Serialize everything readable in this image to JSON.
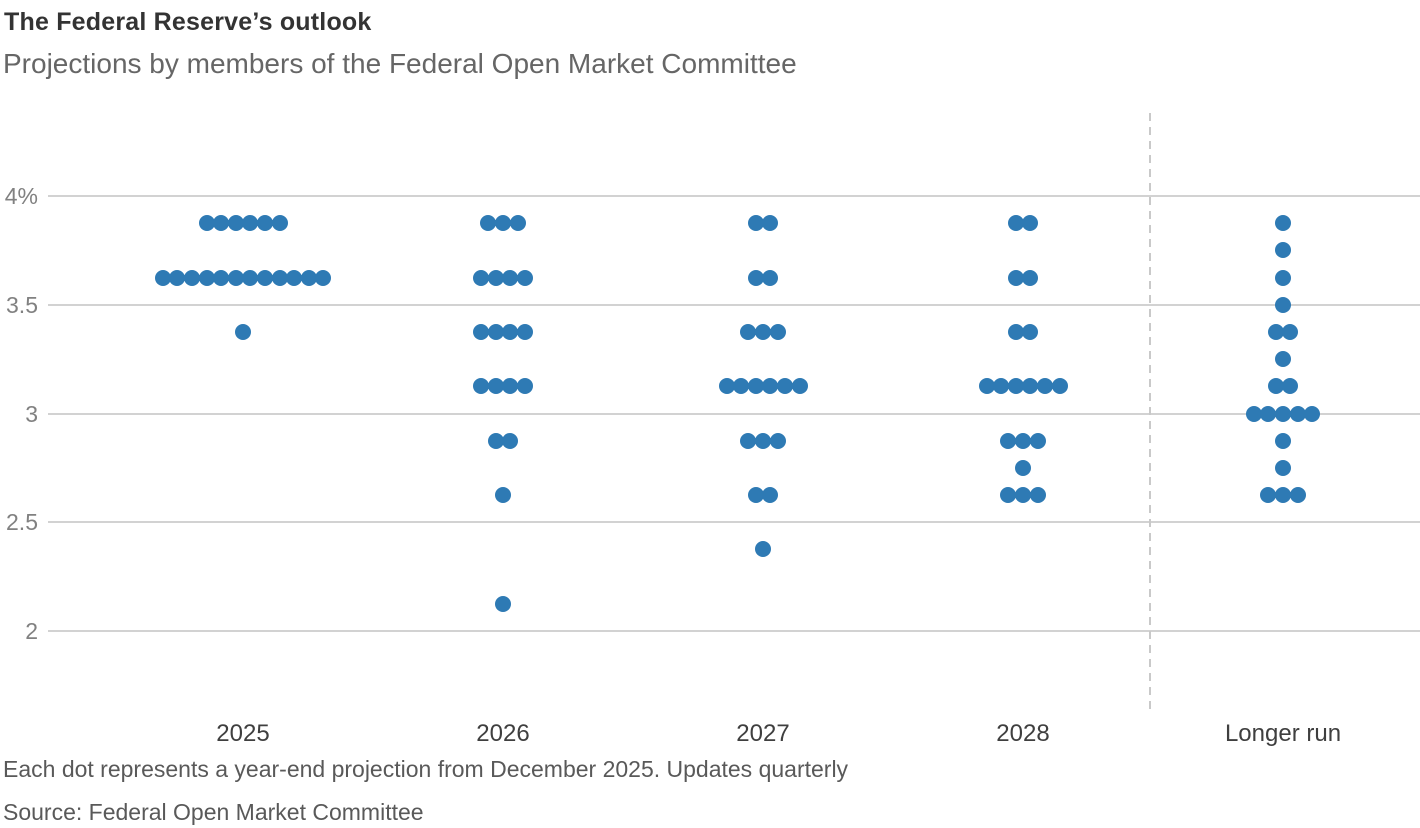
{
  "chart_data": {
    "type": "scatter",
    "subtype": "dot-plot",
    "title": "The Federal Reserve’s outlook",
    "subtitle": "Projections by members of the Federal Open Market Committee",
    "note": "Each dot represents a year-end projection from December 2025. Updates quarterly",
    "source": "Source: Federal Open Market Committee",
    "dot_color": "#2e7ab4",
    "gridline_color": "#d2d2d2",
    "separator_color": "#c9c9c9",
    "grid": "horizontal",
    "legend": "none",
    "ylim": [
      1.52,
      4.4
    ],
    "y_ticks": [
      {
        "label": "4%",
        "value": 4.0
      },
      {
        "label": "3.5",
        "value": 3.5
      },
      {
        "label": "3",
        "value": 3.0
      },
      {
        "label": "2.5",
        "value": 2.5
      },
      {
        "label": "2",
        "value": 2.0
      }
    ],
    "categories": [
      "2025",
      "2026",
      "2027",
      "2028",
      "Longer run"
    ],
    "separator": {
      "between": [
        "2028",
        "Longer run"
      ],
      "style": "dashed"
    },
    "columns": [
      {
        "label": "2025",
        "projections": [
          {
            "rate": 3.875,
            "count": 6
          },
          {
            "rate": 3.625,
            "count": 12
          },
          {
            "rate": 3.375,
            "count": 1
          }
        ]
      },
      {
        "label": "2026",
        "projections": [
          {
            "rate": 3.875,
            "count": 3
          },
          {
            "rate": 3.625,
            "count": 4
          },
          {
            "rate": 3.375,
            "count": 4
          },
          {
            "rate": 3.125,
            "count": 4
          },
          {
            "rate": 2.875,
            "count": 2
          },
          {
            "rate": 2.625,
            "count": 1
          },
          {
            "rate": 2.125,
            "count": 1
          }
        ]
      },
      {
        "label": "2027",
        "projections": [
          {
            "rate": 3.875,
            "count": 2
          },
          {
            "rate": 3.625,
            "count": 2
          },
          {
            "rate": 3.375,
            "count": 3
          },
          {
            "rate": 3.125,
            "count": 6
          },
          {
            "rate": 2.875,
            "count": 3
          },
          {
            "rate": 2.625,
            "count": 2
          },
          {
            "rate": 2.375,
            "count": 1
          }
        ]
      },
      {
        "label": "2028",
        "projections": [
          {
            "rate": 3.875,
            "count": 2
          },
          {
            "rate": 3.625,
            "count": 2
          },
          {
            "rate": 3.375,
            "count": 2
          },
          {
            "rate": 3.125,
            "count": 6
          },
          {
            "rate": 2.875,
            "count": 3
          },
          {
            "rate": 2.75,
            "count": 1
          },
          {
            "rate": 2.625,
            "count": 3
          }
        ]
      },
      {
        "label": "Longer run",
        "projections": [
          {
            "rate": 3.875,
            "count": 1
          },
          {
            "rate": 3.75,
            "count": 1
          },
          {
            "rate": 3.625,
            "count": 1
          },
          {
            "rate": 3.5,
            "count": 1
          },
          {
            "rate": 3.375,
            "count": 2
          },
          {
            "rate": 3.25,
            "count": 1
          },
          {
            "rate": 3.125,
            "count": 2
          },
          {
            "rate": 3.0,
            "count": 5
          },
          {
            "rate": 2.875,
            "count": 1
          },
          {
            "rate": 2.75,
            "count": 1
          },
          {
            "rate": 2.625,
            "count": 3
          }
        ]
      }
    ]
  }
}
